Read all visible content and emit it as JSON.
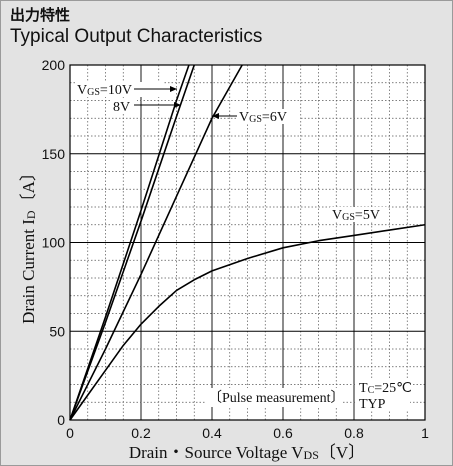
{
  "title_jp": "出力特性",
  "title_en": "Typical Output Characteristics",
  "chart_data": {
    "type": "line",
    "title": "Typical Output Characteristics",
    "xlabel": "Drain・Source Voltage VDS〔V〕",
    "ylabel": "Drain Current ID〔A〕",
    "xlim": [
      0,
      1
    ],
    "ylim": [
      0,
      200
    ],
    "x_ticks": [
      "0",
      "0.2",
      "0.4",
      "0.6",
      "0.8",
      "1"
    ],
    "y_ticks": [
      "0",
      "50",
      "100",
      "150",
      "200"
    ],
    "grid": true,
    "series": [
      {
        "name": "VGS=10V",
        "points": [
          [
            0,
            0
          ],
          [
            0.1,
            58
          ],
          [
            0.2,
            118
          ],
          [
            0.3,
            180
          ],
          [
            0.335,
            200
          ]
        ]
      },
      {
        "name": "8V",
        "points": [
          [
            0,
            0
          ],
          [
            0.1,
            55
          ],
          [
            0.2,
            112
          ],
          [
            0.3,
            171
          ],
          [
            0.35,
            200
          ]
        ]
      },
      {
        "name": "VGS=6V",
        "points": [
          [
            0,
            0
          ],
          [
            0.1,
            40
          ],
          [
            0.2,
            82
          ],
          [
            0.3,
            126
          ],
          [
            0.4,
            170
          ],
          [
            0.485,
            200
          ]
        ]
      },
      {
        "name": "VGS=5V",
        "points": [
          [
            0,
            0
          ],
          [
            0.05,
            14
          ],
          [
            0.1,
            28
          ],
          [
            0.15,
            42
          ],
          [
            0.2,
            54
          ],
          [
            0.25,
            64
          ],
          [
            0.3,
            73
          ],
          [
            0.35,
            79
          ],
          [
            0.4,
            84
          ],
          [
            0.5,
            91
          ],
          [
            0.6,
            97
          ],
          [
            0.7,
            101
          ],
          [
            0.8,
            104
          ],
          [
            0.9,
            107
          ],
          [
            1.0,
            110
          ]
        ]
      }
    ],
    "annotations": {
      "pulse": "〔Pulse measurement〕",
      "tc": "TC=25℃",
      "typ": "TYP"
    }
  }
}
